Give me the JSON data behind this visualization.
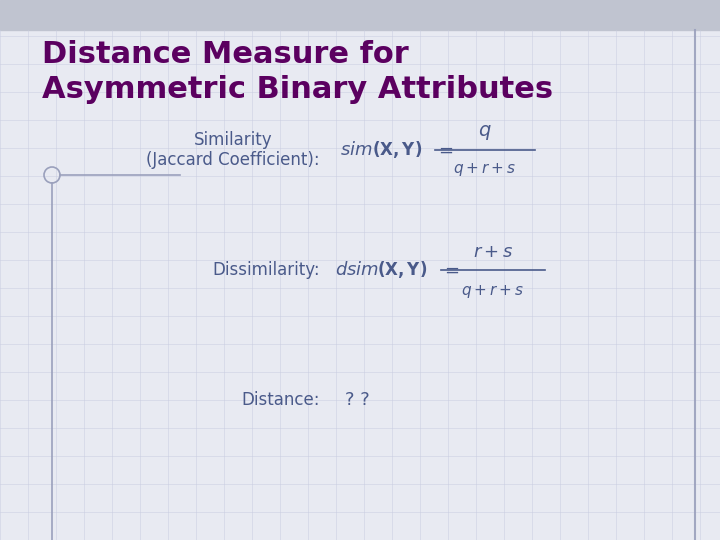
{
  "title_line1": "Distance Measure for",
  "title_line2": "Asymmetric Binary Attributes",
  "title_color": "#5B0060",
  "background_color": "#E8EAF2",
  "top_bar_color": "#C0C4D0",
  "grid_color": "#C8CCE0",
  "label_color": "#4A5A8A",
  "formula_color": "#4A5A8A",
  "border_color": "#9AA0BC",
  "label1": "Similarity\n(Jaccard Coefficient):",
  "label2": "Dissimilarity:",
  "label3": "Distance:",
  "value3": "? ?",
  "figsize": [
    7.2,
    5.4
  ],
  "dpi": 100
}
